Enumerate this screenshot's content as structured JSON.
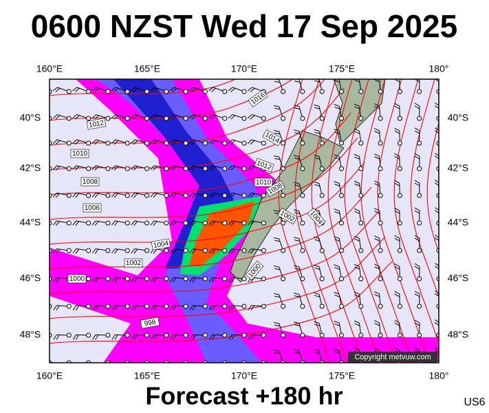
{
  "header": {
    "title": "0600 NZST Wed 17 Sep 2025"
  },
  "map": {
    "lon_labels": [
      "160°E",
      "165°E",
      "170°E",
      "175°E",
      "180°"
    ],
    "lat_labels": [
      "40°S",
      "42°S",
      "44°S",
      "46°S",
      "48°S"
    ],
    "isobar_labels": [
      "1016",
      "1012",
      "1010",
      "1008",
      "1006",
      "1004",
      "1002",
      "1000",
      "998",
      "1014",
      "1012",
      "1010",
      "1008",
      "1002",
      "1004",
      "1000"
    ],
    "copyright": "Copyright metvuw.com"
  },
  "footer": {
    "forecast": "Forecast +180 hr",
    "code": "US6"
  }
}
